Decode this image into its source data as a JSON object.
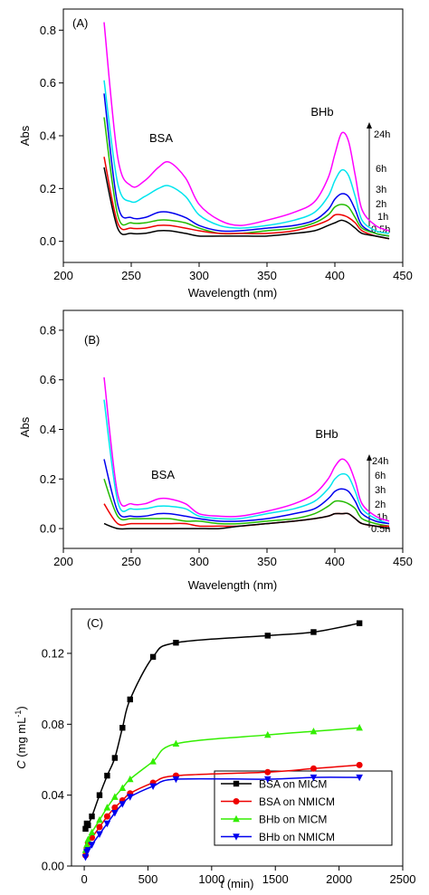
{
  "chart_data": [
    {
      "type": "line",
      "panel_label": "(A)",
      "xlabel": "Wavelength (nm)",
      "ylabel": "Abs",
      "xlim": [
        200,
        450
      ],
      "ylim": [
        -0.08,
        0.88
      ],
      "xticks": [
        200,
        250,
        300,
        350,
        400,
        450
      ],
      "yticks": [
        0.0,
        0.2,
        0.4,
        0.6,
        0.8
      ],
      "ytick_labels": [
        "0.0",
        "0.2",
        "0.4",
        "0.6",
        "0.8"
      ],
      "grid": false,
      "annotations": [
        "BSA",
        "BHb"
      ],
      "time_labels": [
        "24h",
        "6h",
        "3h",
        "2h",
        "1h",
        "0.5h"
      ],
      "x": [
        230,
        240,
        250,
        260,
        270,
        278,
        290,
        300,
        315,
        330,
        350,
        370,
        385,
        395,
        400,
        405,
        410,
        415,
        420,
        430,
        440
      ],
      "series": [
        {
          "name": "24h",
          "color": "#ff00ff",
          "values": [
            0.83,
            0.32,
            0.21,
            0.23,
            0.28,
            0.3,
            0.24,
            0.14,
            0.08,
            0.06,
            0.08,
            0.11,
            0.15,
            0.24,
            0.33,
            0.41,
            0.38,
            0.25,
            0.12,
            0.06,
            0.04
          ]
        },
        {
          "name": "6h",
          "color": "#00e5ee",
          "values": [
            0.61,
            0.22,
            0.15,
            0.17,
            0.2,
            0.21,
            0.17,
            0.1,
            0.06,
            0.05,
            0.06,
            0.08,
            0.11,
            0.17,
            0.23,
            0.27,
            0.25,
            0.17,
            0.08,
            0.04,
            0.03
          ]
        },
        {
          "name": "3h",
          "color": "#0000ee",
          "values": [
            0.56,
            0.14,
            0.09,
            0.09,
            0.11,
            0.11,
            0.09,
            0.06,
            0.04,
            0.04,
            0.05,
            0.06,
            0.08,
            0.12,
            0.16,
            0.18,
            0.17,
            0.12,
            0.06,
            0.03,
            0.02
          ]
        },
        {
          "name": "2h",
          "color": "#22bb00",
          "values": [
            0.47,
            0.1,
            0.07,
            0.07,
            0.08,
            0.08,
            0.07,
            0.05,
            0.03,
            0.03,
            0.04,
            0.05,
            0.07,
            0.1,
            0.13,
            0.14,
            0.13,
            0.09,
            0.05,
            0.03,
            0.02
          ]
        },
        {
          "name": "1h",
          "color": "#ee0000",
          "values": [
            0.32,
            0.07,
            0.05,
            0.05,
            0.06,
            0.06,
            0.05,
            0.04,
            0.03,
            0.03,
            0.03,
            0.04,
            0.06,
            0.08,
            0.1,
            0.1,
            0.09,
            0.07,
            0.04,
            0.02,
            0.01
          ]
        },
        {
          "name": "0.5h",
          "color": "#000000",
          "values": [
            0.28,
            0.05,
            0.03,
            0.03,
            0.04,
            0.04,
            0.03,
            0.02,
            0.02,
            0.02,
            0.02,
            0.03,
            0.04,
            0.06,
            0.07,
            0.08,
            0.07,
            0.05,
            0.03,
            0.02,
            0.01
          ]
        }
      ]
    },
    {
      "type": "line",
      "panel_label": "(B)",
      "xlabel": "Wavelength (nm)",
      "ylabel": "Abs",
      "xlim": [
        200,
        450
      ],
      "ylim": [
        -0.08,
        0.88
      ],
      "xticks": [
        200,
        250,
        300,
        350,
        400,
        450
      ],
      "yticks": [
        0.0,
        0.2,
        0.4,
        0.6,
        0.8
      ],
      "ytick_labels": [
        "0.0",
        "0.2",
        "0.4",
        "0.6",
        "0.8"
      ],
      "grid": false,
      "annotations": [
        "BSA",
        "BHb"
      ],
      "time_labels": [
        "24h",
        "6h",
        "3h",
        "2h",
        "1h",
        "0.5h"
      ],
      "x": [
        230,
        240,
        250,
        260,
        270,
        278,
        290,
        300,
        315,
        330,
        350,
        370,
        385,
        395,
        400,
        405,
        410,
        415,
        420,
        430,
        440
      ],
      "series": [
        {
          "name": "24h",
          "color": "#ff00ff",
          "values": [
            0.61,
            0.14,
            0.1,
            0.1,
            0.12,
            0.12,
            0.1,
            0.06,
            0.05,
            0.05,
            0.07,
            0.1,
            0.14,
            0.2,
            0.25,
            0.28,
            0.26,
            0.19,
            0.1,
            0.05,
            0.03
          ]
        },
        {
          "name": "6h",
          "color": "#00e5ee",
          "values": [
            0.52,
            0.11,
            0.08,
            0.08,
            0.09,
            0.09,
            0.08,
            0.05,
            0.04,
            0.04,
            0.06,
            0.08,
            0.11,
            0.16,
            0.2,
            0.22,
            0.21,
            0.15,
            0.08,
            0.04,
            0.02
          ]
        },
        {
          "name": "3h",
          "color": "#0000ee",
          "values": [
            0.28,
            0.07,
            0.05,
            0.05,
            0.06,
            0.06,
            0.05,
            0.04,
            0.03,
            0.03,
            0.04,
            0.06,
            0.08,
            0.12,
            0.15,
            0.16,
            0.15,
            0.11,
            0.06,
            0.03,
            0.02
          ]
        },
        {
          "name": "2h",
          "color": "#22bb00",
          "values": [
            0.2,
            0.05,
            0.04,
            0.04,
            0.04,
            0.04,
            0.03,
            0.03,
            0.02,
            0.02,
            0.03,
            0.04,
            0.06,
            0.09,
            0.11,
            0.11,
            0.1,
            0.08,
            0.04,
            0.02,
            0.01
          ]
        },
        {
          "name": "1h",
          "color": "#ee0000",
          "values": [
            0.1,
            0.02,
            0.02,
            0.02,
            0.02,
            0.02,
            0.02,
            0.01,
            0.01,
            0.01,
            0.02,
            0.03,
            0.04,
            0.05,
            0.06,
            0.06,
            0.06,
            0.04,
            0.02,
            0.01,
            0.01
          ]
        },
        {
          "name": "0.5h",
          "color": "#000000",
          "values": [
            0.02,
            0.0,
            0.0,
            0.0,
            0.0,
            0.0,
            0.0,
            0.0,
            0.0,
            0.01,
            0.02,
            0.03,
            0.04,
            0.05,
            0.06,
            0.06,
            0.06,
            0.04,
            0.02,
            0.01,
            0.0
          ]
        }
      ]
    },
    {
      "type": "line",
      "panel_label": "(C)",
      "xlabel_italic": "t",
      "xlabel_rest": " (min)",
      "ylabel_italic": "C",
      "ylabel_rest": " (mg mL",
      "ylabel_sup": "-1",
      "ylabel_close": ")",
      "xlim": [
        -100,
        2500
      ],
      "ylim": [
        0.0,
        0.145
      ],
      "xticks": [
        0,
        500,
        1000,
        1500,
        2000,
        2500
      ],
      "yticks": [
        0.0,
        0.04,
        0.08,
        0.12
      ],
      "ytick_labels": [
        "0.00",
        "0.04",
        "0.08",
        "0.12"
      ],
      "grid": false,
      "legend_position": "bottom-right",
      "x": [
        10,
        20,
        30,
        60,
        120,
        180,
        240,
        300,
        360,
        540,
        720,
        1440,
        1800,
        2160
      ],
      "series": [
        {
          "name": "BSA on MICM",
          "color": "#000000",
          "marker": "square",
          "values": [
            0.021,
            0.024,
            0.023,
            0.028,
            0.04,
            0.051,
            0.061,
            0.078,
            0.094,
            0.118,
            0.126,
            0.13,
            0.132,
            0.137
          ]
        },
        {
          "name": "BSA on NMICM",
          "color": "#ee0000",
          "marker": "circle",
          "values": [
            0.006,
            0.01,
            0.013,
            0.016,
            0.022,
            0.028,
            0.033,
            0.037,
            0.041,
            0.047,
            0.051,
            0.053,
            0.055,
            0.057
          ]
        },
        {
          "name": "BHb on MICM",
          "color": "#33ee00",
          "marker": "triangle-up",
          "values": [
            0.009,
            0.012,
            0.015,
            0.019,
            0.026,
            0.033,
            0.039,
            0.044,
            0.049,
            0.059,
            0.069,
            0.074,
            0.076,
            0.078
          ]
        },
        {
          "name": "BHb on NMICM",
          "color": "#0000ee",
          "marker": "triangle-down",
          "values": [
            0.005,
            0.008,
            0.009,
            0.012,
            0.018,
            0.024,
            0.03,
            0.035,
            0.039,
            0.045,
            0.049,
            0.049,
            0.05,
            0.05
          ]
        }
      ]
    }
  ]
}
